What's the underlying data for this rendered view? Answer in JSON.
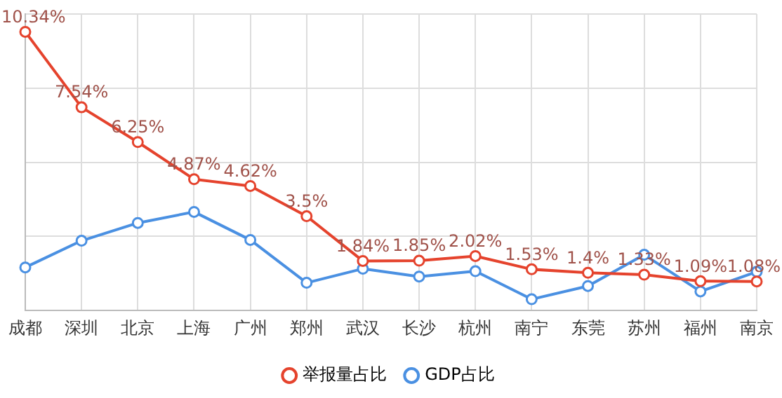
{
  "chart_data": {
    "type": "line",
    "categories": [
      "成都",
      "深圳",
      "北京",
      "上海",
      "广州",
      "郑州",
      "武汉",
      "长沙",
      "杭州",
      "南宁",
      "东莞",
      "苏州",
      "福州",
      "南京"
    ],
    "series": [
      {
        "name": "举报量占比",
        "color": "#e5432d",
        "values": [
          10.34,
          7.54,
          6.25,
          4.87,
          4.62,
          3.5,
          1.84,
          1.85,
          2.02,
          1.53,
          1.4,
          1.33,
          1.09,
          1.08
        ],
        "value_labels": [
          "10.34%",
          "7.54%",
          "6.25%",
          "4.87%",
          "4.62%",
          "3.5%",
          "1.84%",
          "1.85%",
          "2.02%",
          "1.53%",
          "1.4%",
          "1.33%",
          "1.09%",
          "1.08%"
        ]
      },
      {
        "name": "GDP占比",
        "color": "#4a90e2",
        "values": [
          1.6,
          2.59,
          3.25,
          3.66,
          2.62,
          1.03,
          1.55,
          1.26,
          1.46,
          0.42,
          0.91,
          2.07,
          0.71,
          1.44
        ]
      }
    ],
    "ylim": [
      0,
      11
    ],
    "yticks": [
      {
        "value": 0,
        "label": null
      },
      {
        "value": 2.75,
        "label": null
      },
      {
        "value": 5.5,
        "label": null
      },
      {
        "value": 8.25,
        "label": null
      },
      {
        "value": 11,
        "label": null
      }
    ],
    "grid": true,
    "legend": "bottom",
    "tick_labels": "x",
    "marker": "circle",
    "line_style": "solid"
  }
}
